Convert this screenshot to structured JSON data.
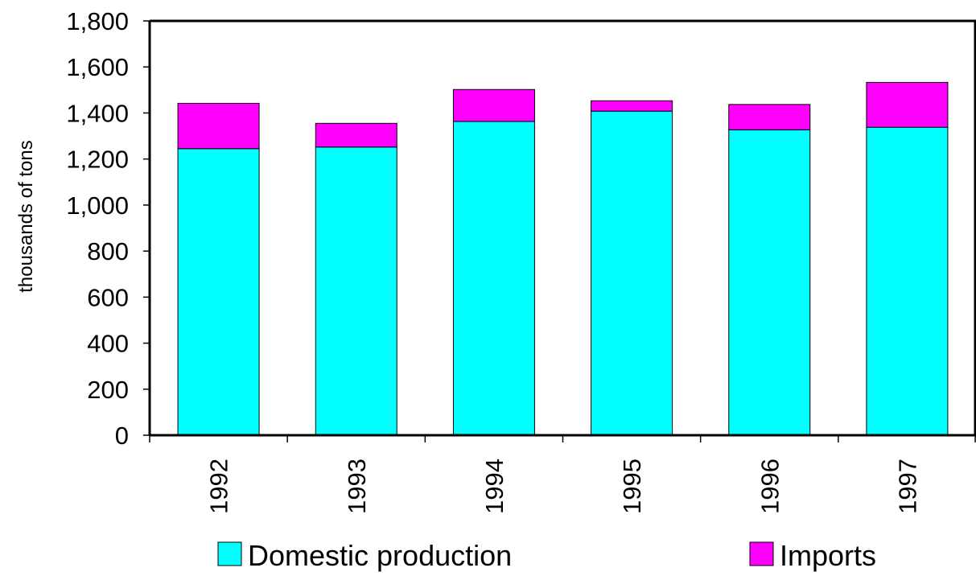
{
  "chart_data": {
    "type": "bar",
    "stacked": true,
    "categories": [
      "1992",
      "1993",
      "1994",
      "1995",
      "1996",
      "1997"
    ],
    "series": [
      {
        "name": "Domestic production",
        "color": "#00FFFF",
        "values": [
          1245,
          1252,
          1363,
          1408,
          1327,
          1338
        ]
      },
      {
        "name": "Imports",
        "color": "#FF00FF",
        "values": [
          197,
          103,
          139,
          45,
          110,
          195
        ]
      }
    ],
    "ylabel": "thousands of tons",
    "ylim": [
      0,
      1800
    ],
    "yticks": [
      "0",
      "200",
      "400",
      "600",
      "800",
      "1,000",
      "1,200",
      "1,400",
      "1,600",
      "1,800"
    ],
    "grid": false,
    "legend_position": "bottom",
    "xtick_rotation": "vertical"
  }
}
